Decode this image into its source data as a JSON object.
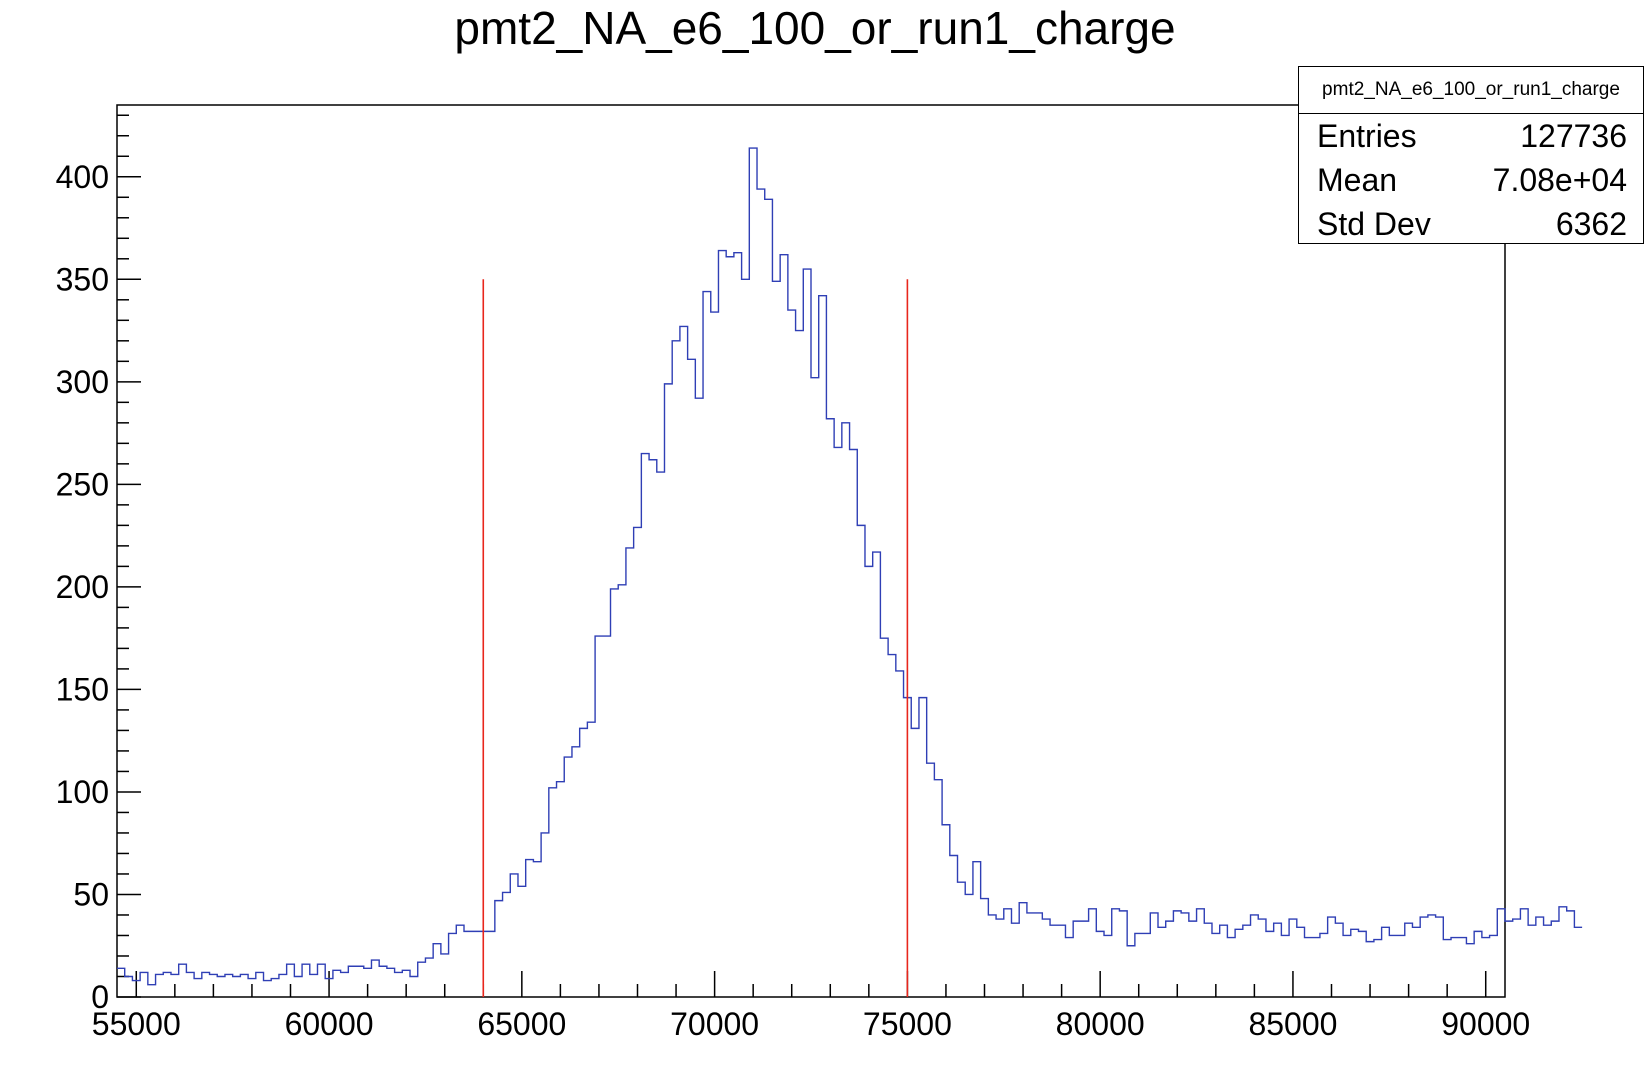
{
  "title": "pmt2_NA_e6_100_or_run1_charge",
  "stats": {
    "name": "pmt2_NA_e6_100_or_run1_charge",
    "rows": [
      {
        "label": "Entries",
        "value": "127736"
      },
      {
        "label": "Mean",
        "value": "7.08e+04"
      },
      {
        "label": "Std Dev",
        "value": "6362"
      }
    ]
  },
  "colors": {
    "histogram": "#2f3fb5",
    "cut_lines": "#e8261c",
    "axis": "#000000"
  },
  "chart_data": {
    "type": "histogram",
    "title": "pmt2_NA_e6_100_or_run1_charge",
    "xlabel": "",
    "ylabel": "",
    "xlim": [
      54500,
      90500
    ],
    "ylim": [
      0,
      435
    ],
    "xticks": [
      55000,
      60000,
      65000,
      70000,
      75000,
      80000,
      85000,
      90000
    ],
    "yticks": [
      0,
      50,
      100,
      150,
      200,
      250,
      300,
      350,
      400
    ],
    "bin_width": 200,
    "bin_start": 54500,
    "counts": [
      14,
      10,
      8,
      12,
      6,
      11,
      12,
      11,
      16,
      12,
      9,
      12,
      11,
      10,
      11,
      10,
      11,
      9,
      12,
      8,
      9,
      11,
      16,
      10,
      16,
      11,
      16,
      9,
      13,
      12,
      15,
      15,
      14,
      18,
      15,
      14,
      12,
      13,
      10,
      17,
      19,
      26,
      21,
      31,
      35,
      32,
      32,
      32,
      32,
      47,
      51,
      60,
      54,
      67,
      66,
      80,
      102,
      105,
      117,
      122,
      131,
      134,
      176,
      176,
      199,
      201,
      219,
      229,
      265,
      262,
      256,
      299,
      320,
      327,
      311,
      292,
      344,
      334,
      364,
      361,
      363,
      350,
      414,
      394,
      389,
      349,
      362,
      335,
      325,
      355,
      302,
      342,
      282,
      268,
      280,
      267,
      230,
      210,
      217,
      175,
      167,
      159,
      146,
      131,
      146,
      114,
      106,
      84,
      69,
      56,
      50,
      66,
      48,
      40,
      38,
      43,
      36,
      46,
      41,
      41,
      38,
      35,
      35,
      29,
      37,
      37,
      43,
      32,
      30,
      43,
      42,
      25,
      31,
      31,
      41,
      34,
      37,
      42,
      41,
      37,
      43,
      36,
      31,
      35,
      29,
      33,
      35,
      40,
      38,
      32,
      36,
      30,
      38,
      34,
      29,
      29,
      31,
      39,
      36,
      30,
      33,
      32,
      27,
      28,
      34,
      30,
      30,
      36,
      34,
      39,
      40,
      39,
      28,
      29,
      29,
      26,
      32,
      29,
      30,
      43,
      37,
      38,
      43,
      35,
      39,
      35,
      37,
      44,
      42,
      34
    ]
  },
  "cut_lines": [
    {
      "x": 64000,
      "y_top": 350
    },
    {
      "x": 75000,
      "y_top": 350
    }
  ]
}
